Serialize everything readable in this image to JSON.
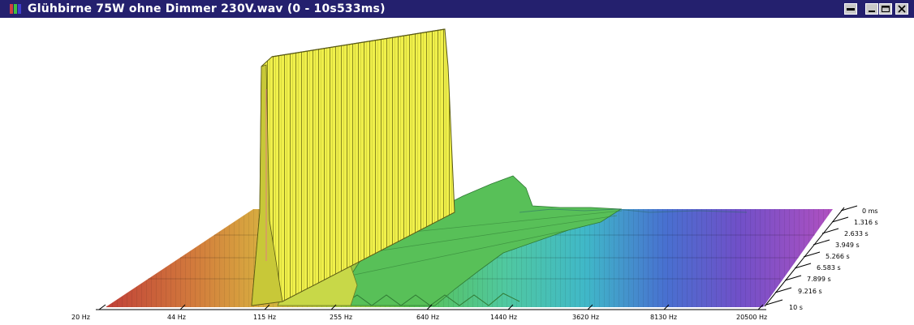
{
  "window": {
    "title": "Glühbirne 75W ohne Dimmer 230V.wav (0 - 10s533ms)",
    "icons": {
      "app": "spectrum-app-icon",
      "restore": "restore-icon",
      "minimize": "minimize-icon",
      "maximize": "maximize-icon",
      "close": "close-icon"
    },
    "colors": {
      "titlebar": "#24206e",
      "peak_yellow": "#eef046",
      "mid_green": "#5cc050",
      "high_purple": "#a650c0"
    }
  },
  "chart_data": {
    "type": "waterfall-3d-spectrum",
    "frequency_ticks": [
      "20 Hz",
      "44 Hz",
      "115 Hz",
      "255 Hz",
      "640 Hz",
      "1440 Hz",
      "3620 Hz",
      "8130 Hz",
      "20500 Hz"
    ],
    "time_ticks": [
      "0 ms",
      "1.316 s",
      "2.633 s",
      "3.949 s",
      "5.266 s",
      "6.583 s",
      "7.899 s",
      "9.216 s",
      "10 s"
    ],
    "x_scale": "log",
    "x_range_hz": [
      20,
      20500
    ],
    "time_range_s": [
      0,
      10.533
    ]
  }
}
